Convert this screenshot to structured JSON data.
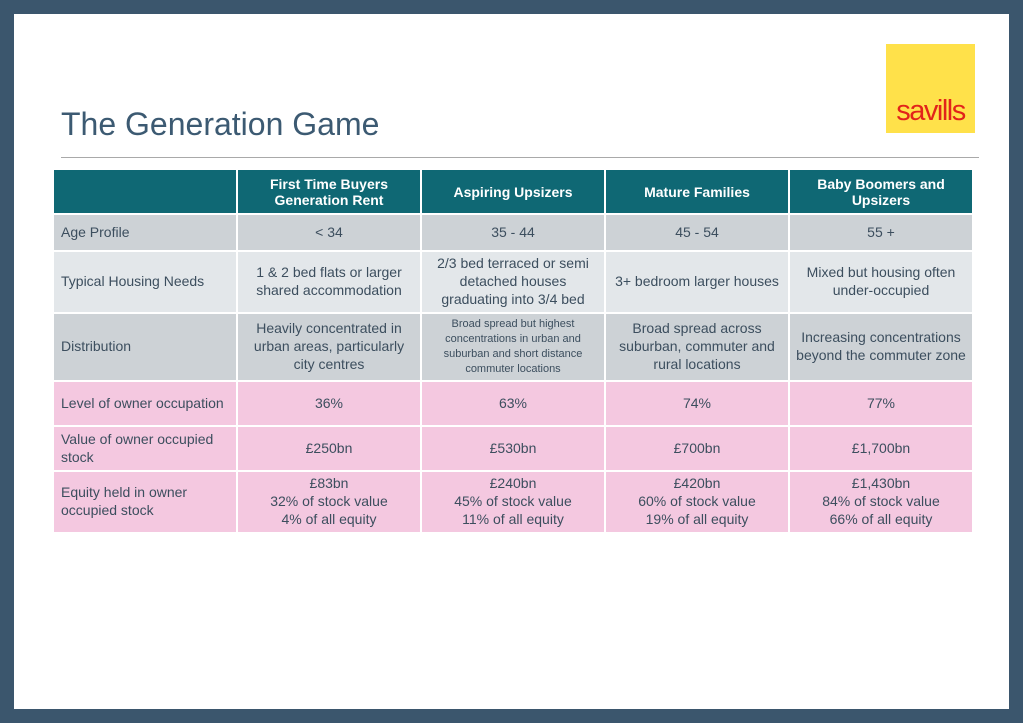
{
  "title": "The Generation Game",
  "logo_text": "savills",
  "colors": {
    "frame": "#3b566d",
    "header": "#0f6874",
    "grey_row": "#cdd2d6",
    "light_grey_row": "#e3e7ea",
    "pink_row": "#f4c8e0",
    "logo_bg": "#ffe14a",
    "logo_text": "#e2231a"
  },
  "table": {
    "columns": [
      "",
      "First Time Buyers Generation Rent",
      "Aspiring Upsizers",
      "Mature Families",
      "Baby Boomers and Upsizers"
    ],
    "rows": [
      {
        "label": "Age Profile",
        "cells": [
          "< 34",
          "35 - 44",
          "45 - 54",
          "55 +"
        ]
      },
      {
        "label": "Typical Housing Needs",
        "cells": [
          "1 & 2 bed flats or larger shared accommodation",
          "2/3 bed terraced or semi detached houses graduating into  3/4 bed",
          "3+ bedroom larger houses",
          "Mixed but housing often under-occupied"
        ]
      },
      {
        "label": "Distribution",
        "cells": [
          "Heavily concentrated in urban areas, particularly city centres",
          "Broad spread but highest concentrations in urban and suburban and short distance commuter locations",
          "Broad spread across suburban, commuter and rural locations",
          "Increasing concentrations beyond the commuter zone"
        ]
      },
      {
        "label": "Level of owner occupation",
        "cells": [
          "36%",
          "63%",
          "74%",
          "77%"
        ]
      },
      {
        "label": "Value of owner occupied stock",
        "cells": [
          "£250bn",
          "£530bn",
          "£700bn",
          "£1,700bn"
        ]
      },
      {
        "label": "Equity held in owner occupied stock",
        "cells": [
          [
            "£83bn",
            "32% of stock value",
            "4% of all equity"
          ],
          [
            "£240bn",
            "45% of stock value",
            "11% of all equity"
          ],
          [
            "£420bn",
            "60% of stock value",
            "19% of all equity"
          ],
          [
            "£1,430bn",
            "84% of stock value",
            "66% of all equity"
          ]
        ]
      }
    ]
  }
}
